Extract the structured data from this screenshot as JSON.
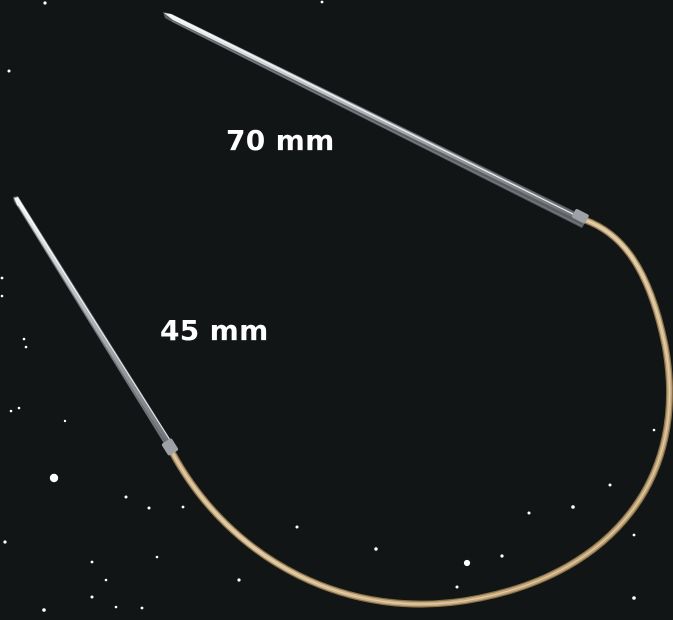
{
  "labels": {
    "long_needle": "70 mm",
    "short_needle": "45 mm"
  },
  "colors": {
    "background": "#121516",
    "cable": "#c8ac7e",
    "metal": "#b9bcc0",
    "label_text": "#ffffff"
  }
}
